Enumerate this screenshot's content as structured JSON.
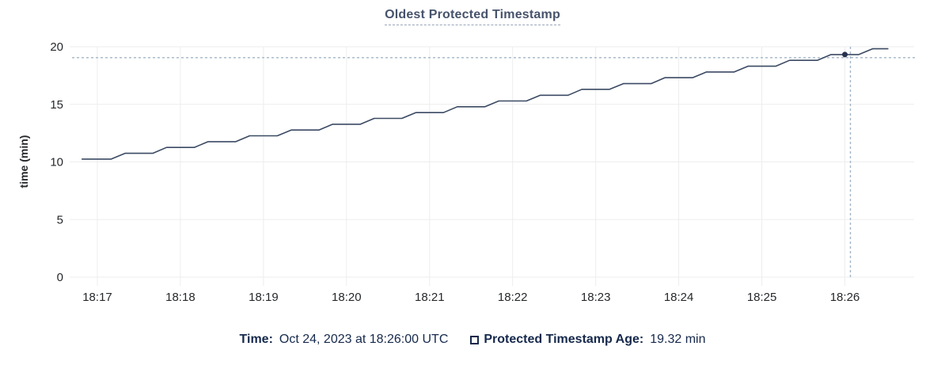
{
  "title": {
    "text": "Oldest Protected Timestamp"
  },
  "y_axis_title": "time (min)",
  "legend": {
    "time_label": "Time:",
    "time_value": "Oct 24, 2023 at 18:26:00 UTC",
    "series_label": "Protected Timestamp Age:",
    "series_value": "19.32 min",
    "series_checkbox_checked": false
  },
  "colors": {
    "title_text": "#46536b",
    "title_underline": "#98a4b8",
    "axis_text": "#26282b",
    "legend_text": "#16294c",
    "gridline": "#ededee",
    "series_line": "#3b4a63",
    "hover_dot": "#26334f",
    "crosshair": "#a2b5c6",
    "background": "#ffffff"
  },
  "chart_data": {
    "type": "line",
    "title": "Oldest Protected Timestamp",
    "xlabel": "",
    "ylabel": "time (min)",
    "ylim": [
      0,
      20
    ],
    "y_ticks": [
      0,
      5,
      10,
      15,
      20
    ],
    "x_tick_labels": [
      "18:17",
      "18:18",
      "18:19",
      "18:20",
      "18:21",
      "18:22",
      "18:23",
      "18:24",
      "18:25",
      "18:26"
    ],
    "x_tick_seconds": [
      0,
      60,
      120,
      180,
      240,
      300,
      360,
      420,
      480,
      540
    ],
    "x_domain_seconds": [
      -20,
      590
    ],
    "x_unit": "seconds relative to 18:17:00 UTC on Oct 24, 2023",
    "grid": true,
    "legend_position": "bottom",
    "series": [
      {
        "name": "Protected Timestamp Age",
        "unit": "min",
        "points": [
          [
            -11,
            10.25
          ],
          [
            10,
            10.25
          ],
          [
            20,
            10.75
          ],
          [
            40,
            10.75
          ],
          [
            50,
            11.26
          ],
          [
            70,
            11.26
          ],
          [
            80,
            11.76
          ],
          [
            100,
            11.76
          ],
          [
            110,
            12.27
          ],
          [
            130,
            12.27
          ],
          [
            140,
            12.77
          ],
          [
            160,
            12.77
          ],
          [
            170,
            13.27
          ],
          [
            190,
            13.27
          ],
          [
            200,
            13.78
          ],
          [
            220,
            13.78
          ],
          [
            230,
            14.28
          ],
          [
            250,
            14.28
          ],
          [
            260,
            14.79
          ],
          [
            280,
            14.79
          ],
          [
            290,
            15.29
          ],
          [
            310,
            15.29
          ],
          [
            320,
            15.79
          ],
          [
            340,
            15.79
          ],
          [
            350,
            16.3
          ],
          [
            370,
            16.3
          ],
          [
            380,
            16.8
          ],
          [
            400,
            16.8
          ],
          [
            410,
            17.31
          ],
          [
            430,
            17.31
          ],
          [
            440,
            17.81
          ],
          [
            460,
            17.81
          ],
          [
            470,
            18.31
          ],
          [
            490,
            18.31
          ],
          [
            500,
            18.82
          ],
          [
            520,
            18.82
          ],
          [
            530,
            19.32
          ],
          [
            550,
            19.32
          ],
          [
            560,
            19.82
          ],
          [
            571,
            19.82
          ]
        ]
      }
    ],
    "hover": {
      "time_seconds": 540,
      "time_label": "Oct 24, 2023 at 18:26:00 UTC",
      "value": 19.32,
      "value_label": "19.32 min",
      "crosshair_vertical_seconds": 544,
      "crosshair_horizontal_value": 19.05
    }
  }
}
